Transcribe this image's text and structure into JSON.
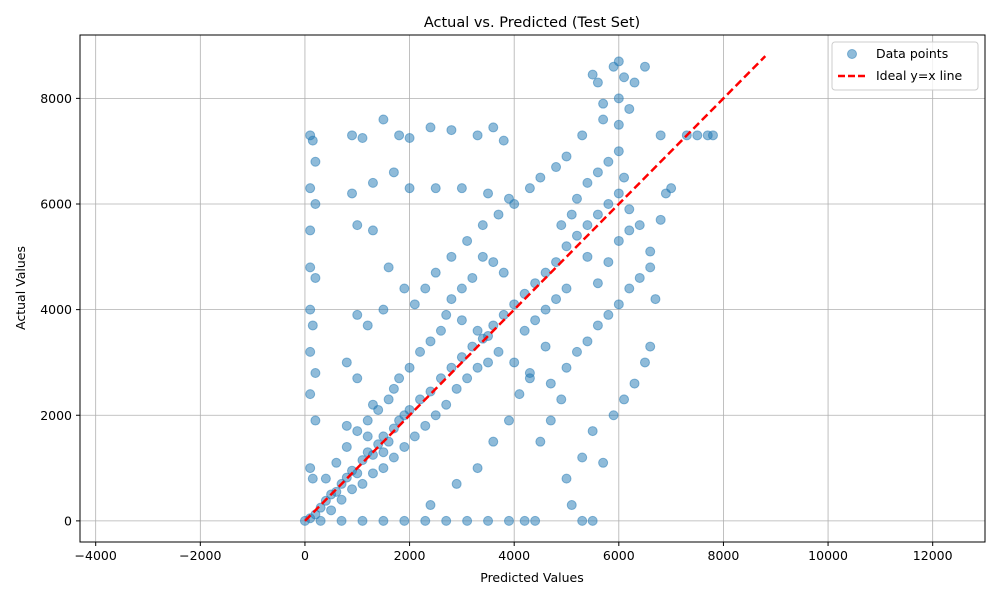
{
  "chart_data": {
    "type": "scatter",
    "title": "Actual vs. Predicted (Test Set)",
    "xlabel": "Predicted Values",
    "ylabel": "Actual Values",
    "xlim": [
      -4300,
      13000
    ],
    "ylim": [
      -400,
      9200
    ],
    "xticks": [
      -4000,
      -2000,
      0,
      2000,
      4000,
      6000,
      8000,
      10000,
      12000
    ],
    "yticks": [
      0,
      2000,
      4000,
      6000,
      8000
    ],
    "grid": true,
    "legend_position": "top-right",
    "series": [
      {
        "name": "Data points",
        "kind": "scatter",
        "color": "#1f77b4",
        "alpha": 0.5,
        "points": [
          [
            0,
            0
          ],
          [
            100,
            50
          ],
          [
            200,
            120
          ],
          [
            300,
            250
          ],
          [
            400,
            380
          ],
          [
            500,
            500
          ],
          [
            600,
            550
          ],
          [
            700,
            700
          ],
          [
            800,
            820
          ],
          [
            900,
            950
          ],
          [
            1000,
            900
          ],
          [
            1100,
            1150
          ],
          [
            1200,
            1300
          ],
          [
            1300,
            1250
          ],
          [
            1400,
            1450
          ],
          [
            1500,
            1600
          ],
          [
            1600,
            1500
          ],
          [
            1700,
            1750
          ],
          [
            1800,
            1900
          ],
          [
            1900,
            2000
          ],
          [
            2000,
            2100
          ],
          [
            2200,
            2300
          ],
          [
            2400,
            2450
          ],
          [
            2600,
            2700
          ],
          [
            2800,
            2900
          ],
          [
            3000,
            3100
          ],
          [
            3200,
            3300
          ],
          [
            3400,
            3450
          ],
          [
            3600,
            3700
          ],
          [
            3800,
            3900
          ],
          [
            4000,
            4100
          ],
          [
            4200,
            4300
          ],
          [
            4400,
            4500
          ],
          [
            4600,
            4700
          ],
          [
            4800,
            4900
          ],
          [
            5000,
            5200
          ],
          [
            5200,
            5400
          ],
          [
            5400,
            5600
          ],
          [
            5600,
            5800
          ],
          [
            5800,
            6000
          ],
          [
            6000,
            6200
          ],
          [
            6100,
            6500
          ],
          [
            6000,
            7000
          ],
          [
            6000,
            7500
          ],
          [
            6000,
            8000
          ],
          [
            6000,
            8700
          ],
          [
            6100,
            8400
          ],
          [
            6200,
            7800
          ],
          [
            5900,
            8600
          ],
          [
            5700,
            7900
          ],
          [
            100,
            7300
          ],
          [
            150,
            7200
          ],
          [
            200,
            6800
          ],
          [
            100,
            6300
          ],
          [
            200,
            6000
          ],
          [
            100,
            5500
          ],
          [
            100,
            4800
          ],
          [
            200,
            4600
          ],
          [
            100,
            4000
          ],
          [
            150,
            3700
          ],
          [
            100,
            3200
          ],
          [
            200,
            2800
          ],
          [
            100,
            2400
          ],
          [
            200,
            1900
          ],
          [
            100,
            1000
          ],
          [
            150,
            800
          ],
          [
            900,
            7300
          ],
          [
            1100,
            7250
          ],
          [
            1500,
            7600
          ],
          [
            1800,
            7300
          ],
          [
            2000,
            7250
          ],
          [
            2400,
            7450
          ],
          [
            2800,
            7400
          ],
          [
            3300,
            7300
          ],
          [
            3600,
            7450
          ],
          [
            3800,
            7200
          ],
          [
            900,
            6200
          ],
          [
            1300,
            6400
          ],
          [
            1700,
            6600
          ],
          [
            2000,
            6300
          ],
          [
            2500,
            6300
          ],
          [
            3000,
            6300
          ],
          [
            3500,
            6200
          ],
          [
            3900,
            6100
          ],
          [
            1000,
            5600
          ],
          [
            1300,
            5500
          ],
          [
            1600,
            4800
          ],
          [
            1900,
            4400
          ],
          [
            1000,
            3900
          ],
          [
            1200,
            3700
          ],
          [
            1500,
            4000
          ],
          [
            800,
            3000
          ],
          [
            1000,
            2700
          ],
          [
            1300,
            2200
          ],
          [
            1700,
            2500
          ],
          [
            800,
            1800
          ],
          [
            1200,
            1600
          ],
          [
            1500,
            1300
          ],
          [
            300,
            0
          ],
          [
            700,
            0
          ],
          [
            1100,
            0
          ],
          [
            1500,
            0
          ],
          [
            1900,
            0
          ],
          [
            2300,
            0
          ],
          [
            2700,
            0
          ],
          [
            3100,
            0
          ],
          [
            3500,
            0
          ],
          [
            3900,
            0
          ],
          [
            4200,
            0
          ],
          [
            4400,
            0
          ],
          [
            5300,
            0
          ],
          [
            5500,
            0
          ],
          [
            2400,
            300
          ],
          [
            2900,
            700
          ],
          [
            3300,
            1000
          ],
          [
            3600,
            1500
          ],
          [
            3900,
            1900
          ],
          [
            4100,
            2400
          ],
          [
            4300,
            2800
          ],
          [
            4600,
            3300
          ],
          [
            4500,
            1500
          ],
          [
            4700,
            1900
          ],
          [
            4900,
            2300
          ],
          [
            5000,
            800
          ],
          [
            5100,
            300
          ],
          [
            5300,
            1200
          ],
          [
            5500,
            1700
          ],
          [
            5700,
            1100
          ],
          [
            5900,
            2000
          ],
          [
            6100,
            2300
          ],
          [
            6300,
            2600
          ],
          [
            6500,
            3000
          ],
          [
            6600,
            3300
          ],
          [
            6700,
            4200
          ],
          [
            6600,
            4800
          ],
          [
            6800,
            5700
          ],
          [
            6900,
            6200
          ],
          [
            7000,
            6300
          ],
          [
            6800,
            7300
          ],
          [
            7300,
            7300
          ],
          [
            7500,
            7300
          ],
          [
            7700,
            7300
          ],
          [
            7800,
            7300
          ],
          [
            6300,
            8300
          ],
          [
            6500,
            8600
          ],
          [
            5500,
            8450
          ],
          [
            5600,
            8300
          ],
          [
            5700,
            7600
          ],
          [
            5300,
            7300
          ],
          [
            5000,
            6900
          ],
          [
            4800,
            6700
          ],
          [
            4500,
            6500
          ],
          [
            4300,
            6300
          ],
          [
            4000,
            6000
          ],
          [
            3700,
            5800
          ],
          [
            3400,
            5600
          ],
          [
            3100,
            5300
          ],
          [
            2800,
            5000
          ],
          [
            2500,
            4700
          ],
          [
            2300,
            4400
          ],
          [
            2100,
            4100
          ],
          [
            2700,
            3900
          ],
          [
            3000,
            3800
          ],
          [
            3300,
            3600
          ],
          [
            3500,
            3500
          ],
          [
            3700,
            3200
          ],
          [
            4000,
            3000
          ],
          [
            4300,
            2700
          ],
          [
            4700,
            2600
          ],
          [
            5000,
            2900
          ],
          [
            5200,
            3200
          ],
          [
            5400,
            3400
          ],
          [
            5600,
            3700
          ],
          [
            5800,
            3900
          ],
          [
            6000,
            4100
          ],
          [
            6200,
            4400
          ],
          [
            6400,
            4600
          ],
          [
            6600,
            5100
          ],
          [
            6400,
            5600
          ],
          [
            6200,
            5900
          ],
          [
            5000,
            4400
          ],
          [
            4800,
            4200
          ],
          [
            4600,
            4000
          ],
          [
            4400,
            3800
          ],
          [
            4200,
            3600
          ],
          [
            3800,
            4700
          ],
          [
            3600,
            4900
          ],
          [
            3400,
            5000
          ],
          [
            3200,
            4600
          ],
          [
            3000,
            4400
          ],
          [
            2800,
            4200
          ],
          [
            2600,
            3600
          ],
          [
            2400,
            3400
          ],
          [
            2200,
            3200
          ],
          [
            2000,
            2900
          ],
          [
            1800,
            2700
          ],
          [
            1600,
            2300
          ],
          [
            1400,
            2100
          ],
          [
            1200,
            1900
          ],
          [
            1000,
            1700
          ],
          [
            800,
            1400
          ],
          [
            600,
            1100
          ],
          [
            400,
            800
          ],
          [
            500,
            200
          ],
          [
            700,
            400
          ],
          [
            900,
            600
          ],
          [
            1100,
            700
          ],
          [
            1300,
            900
          ],
          [
            1500,
            1000
          ],
          [
            1700,
            1200
          ],
          [
            1900,
            1400
          ],
          [
            2100,
            1600
          ],
          [
            2300,
            1800
          ],
          [
            2500,
            2000
          ],
          [
            2700,
            2200
          ],
          [
            2900,
            2500
          ],
          [
            3100,
            2700
          ],
          [
            3300,
            2900
          ],
          [
            3500,
            3000
          ],
          [
            5800,
            6800
          ],
          [
            5600,
            6600
          ],
          [
            5400,
            6400
          ],
          [
            5200,
            6100
          ],
          [
            5400,
            5000
          ],
          [
            5600,
            4500
          ],
          [
            5800,
            4900
          ],
          [
            6000,
            5300
          ],
          [
            6200,
            5500
          ],
          [
            5100,
            5800
          ],
          [
            4900,
            5600
          ]
        ]
      },
      {
        "name": "Ideal y=x line",
        "kind": "line",
        "color": "#ff0000",
        "dash": "dashed",
        "x": [
          0,
          8800
        ],
        "y": [
          0,
          8800
        ]
      }
    ]
  }
}
